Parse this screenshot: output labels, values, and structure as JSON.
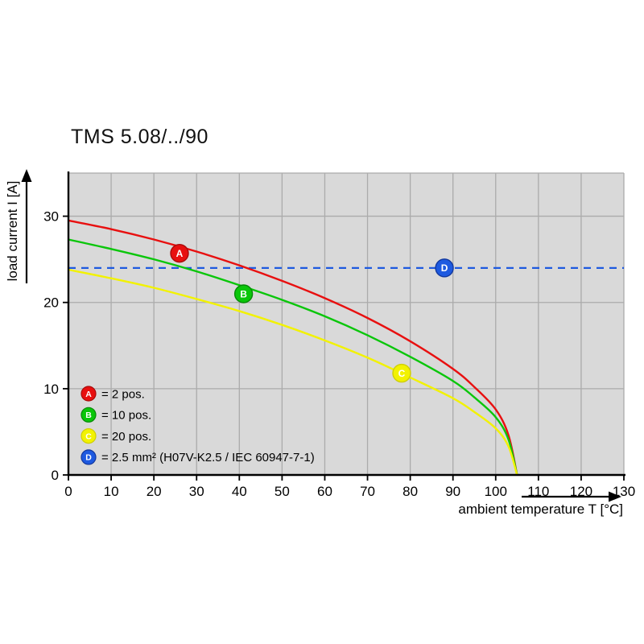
{
  "title": "TMS 5.08/../90",
  "colors": {
    "plot_bg": "#d9d9d9",
    "grid": "#ababab",
    "axis": "#000000",
    "red": "#e81010",
    "green": "#0ac60a",
    "yellow": "#f2f200",
    "blue": "#1e5ae0"
  },
  "chart_data": {
    "type": "line",
    "title": "TMS 5.08/../90",
    "xlabel": "ambient temperature T [°C]",
    "ylabel": "load current I [A]",
    "xlim": [
      0,
      130
    ],
    "ylim": [
      0,
      35
    ],
    "xticks": [
      0,
      10,
      20,
      30,
      40,
      50,
      60,
      70,
      80,
      90,
      100,
      110,
      120,
      130
    ],
    "yticks": [
      0,
      10,
      20,
      30
    ],
    "grid": true,
    "legend_position": "inside bottom-left",
    "series": [
      {
        "id": "A",
        "name": "2 pos.",
        "kind": "curve",
        "color": "#e81010",
        "marker_stroke": "#a80b0b",
        "x": [
          0,
          10,
          20,
          30,
          40,
          50,
          60,
          70,
          80,
          90,
          95,
          100,
          103,
          105
        ],
        "y": [
          29.5,
          28.5,
          27.3,
          25.9,
          24.3,
          22.5,
          20.5,
          18.2,
          15.5,
          12.3,
          10.2,
          7.6,
          4.6,
          0
        ],
        "marker": {
          "letter": "A",
          "x": 26,
          "y": 25.7
        }
      },
      {
        "id": "B",
        "name": "10 pos.",
        "kind": "curve",
        "color": "#0ac60a",
        "marker_stroke": "#078807",
        "x": [
          0,
          10,
          20,
          30,
          40,
          50,
          60,
          70,
          80,
          90,
          95,
          100,
          103,
          105
        ],
        "y": [
          27.3,
          26.2,
          25.0,
          23.6,
          22.0,
          20.3,
          18.4,
          16.2,
          13.7,
          10.9,
          9.0,
          6.7,
          4.1,
          0
        ],
        "marker": {
          "letter": "B",
          "x": 41,
          "y": 21.0
        }
      },
      {
        "id": "C",
        "name": "20 pos.",
        "kind": "curve",
        "color": "#f2f200",
        "marker_stroke": "#cfcf00",
        "x": [
          0,
          10,
          20,
          30,
          40,
          50,
          60,
          70,
          80,
          90,
          95,
          100,
          103,
          105
        ],
        "y": [
          23.8,
          22.8,
          21.7,
          20.4,
          19.0,
          17.4,
          15.6,
          13.6,
          11.3,
          8.9,
          7.3,
          5.4,
          3.3,
          0
        ],
        "marker": {
          "letter": "C",
          "x": 78,
          "y": 11.8
        }
      },
      {
        "id": "D",
        "name": "2.5 mm² (H07V-K2.5 / IEC 60947-7-1)",
        "kind": "hline",
        "color": "#1e5ae0",
        "marker_stroke": "#12389e",
        "dashed": true,
        "value": 24,
        "marker": {
          "letter": "D",
          "x": 88,
          "y": 24
        }
      }
    ],
    "legend": [
      {
        "letter": "A",
        "color": "#e81010",
        "stroke": "#a80b0b",
        "text": "= 2 pos."
      },
      {
        "letter": "B",
        "color": "#0ac60a",
        "stroke": "#078807",
        "text": "= 10 pos."
      },
      {
        "letter": "C",
        "color": "#f2f200",
        "stroke": "#cfcf00",
        "text": "= 20 pos."
      },
      {
        "letter": "D",
        "color": "#1e5ae0",
        "stroke": "#12389e",
        "text": "= 2.5 mm² (H07V-K2.5 / IEC 60947-7-1)"
      }
    ]
  }
}
